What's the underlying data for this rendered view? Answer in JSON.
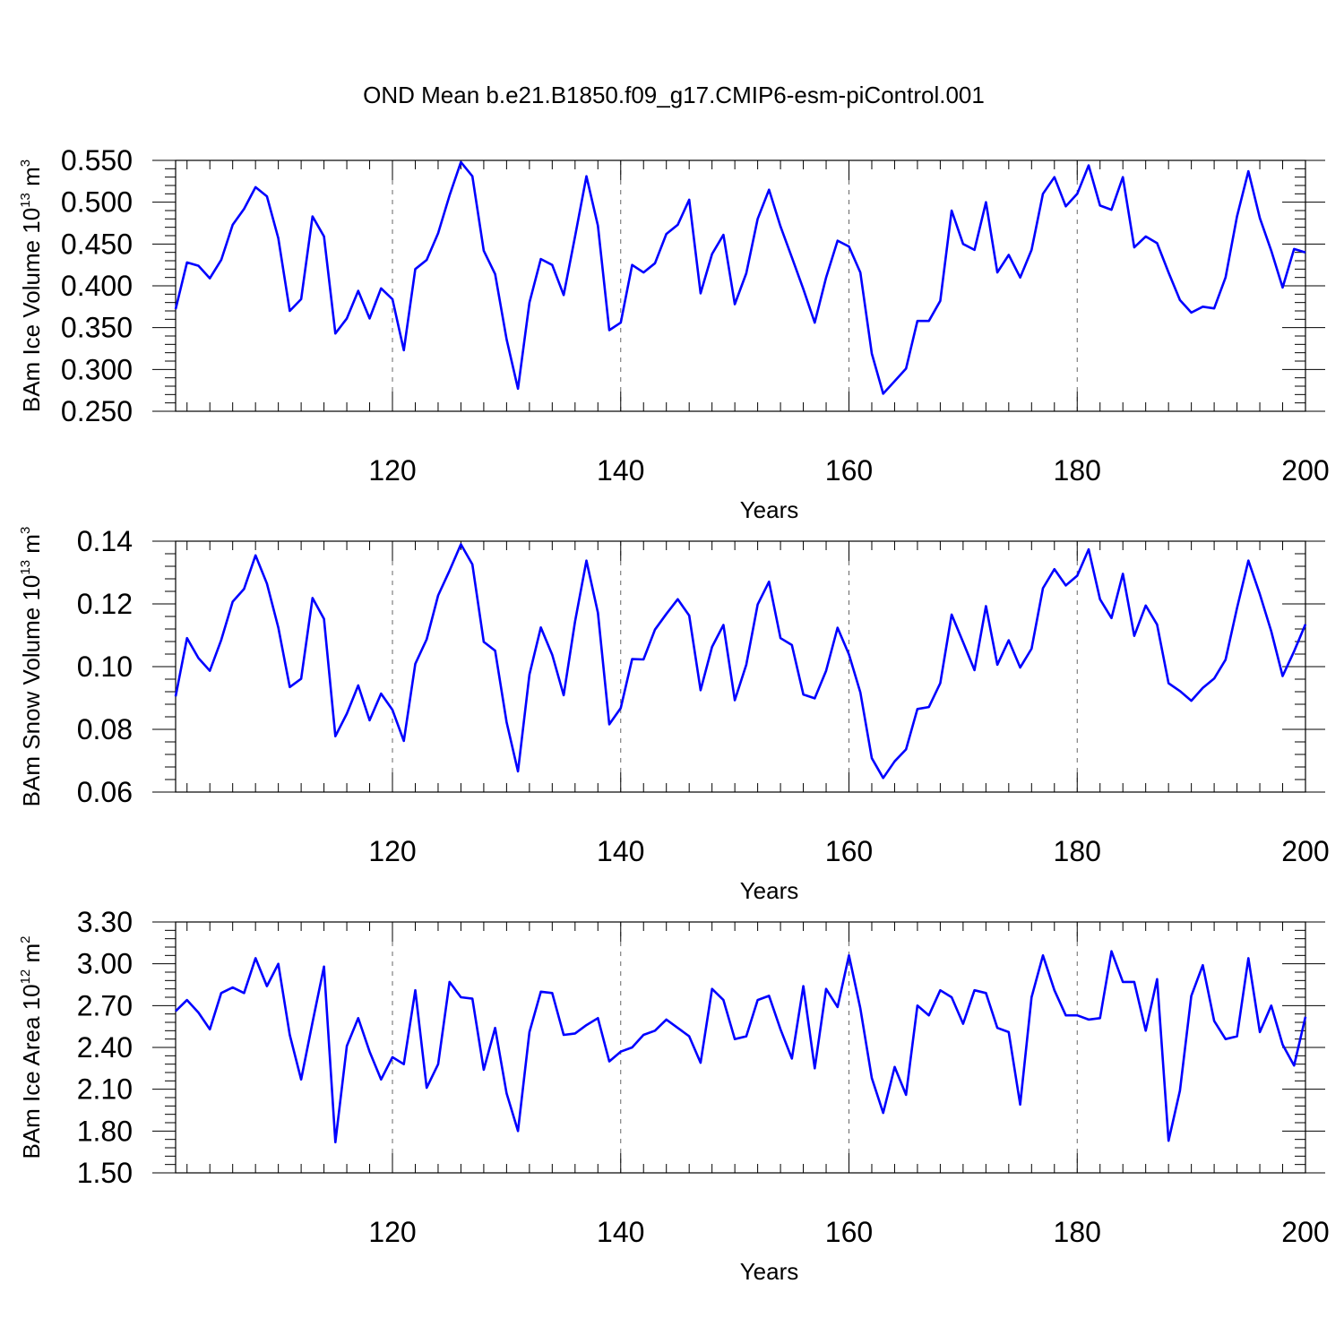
{
  "title": "OND Mean b.e21.B1850.f09_g17.CMIP6-esm-piControl.001",
  "chart_data": [
    {
      "type": "line",
      "xlabel": "Years",
      "ylabel_main": "BAm Ice Volume 10",
      "ylabel_exp": "13",
      "ylabel_unit": " m",
      "ylabel_unit_exp": "3",
      "xlim": [
        101,
        200
      ],
      "ylim": [
        0.25,
        0.55
      ],
      "yticks": [
        0.25,
        0.3,
        0.35,
        0.4,
        0.45,
        0.5,
        0.55
      ],
      "ytick_labels": [
        "0.250",
        "0.300",
        "0.350",
        "0.400",
        "0.450",
        "0.500",
        "0.550"
      ],
      "xticks": [
        120,
        140,
        160,
        180,
        200
      ],
      "xtick_labels": [
        "120",
        "140",
        "160",
        "180",
        "200"
      ],
      "grid_x": [
        120,
        140,
        160,
        180
      ],
      "color": "#0000ff",
      "x_start": 101,
      "values": [
        0.372,
        0.428,
        0.424,
        0.409,
        0.431,
        0.473,
        0.492,
        0.518,
        0.507,
        0.457,
        0.37,
        0.384,
        0.483,
        0.459,
        0.343,
        0.361,
        0.394,
        0.361,
        0.397,
        0.384,
        0.323,
        0.42,
        0.431,
        0.463,
        0.508,
        0.548,
        0.531,
        0.442,
        0.414,
        0.336,
        0.277,
        0.38,
        0.432,
        0.425,
        0.389,
        0.459,
        0.531,
        0.472,
        0.347,
        0.356,
        0.425,
        0.416,
        0.427,
        0.462,
        0.473,
        0.503,
        0.391,
        0.438,
        0.461,
        0.378,
        0.415,
        0.48,
        0.515,
        0.471,
        0.434,
        0.396,
        0.356,
        0.41,
        0.454,
        0.447,
        0.416,
        0.319,
        0.271,
        0.286,
        0.301,
        0.358,
        0.358,
        0.382,
        0.49,
        0.45,
        0.443,
        0.5,
        0.416,
        0.437,
        0.41,
        0.443,
        0.51,
        0.53,
        0.495,
        0.51,
        0.544,
        0.496,
        0.491,
        0.53,
        0.446,
        0.459,
        0.451,
        0.416,
        0.383,
        0.368,
        0.375,
        0.373,
        0.41,
        0.483,
        0.537,
        0.481,
        0.442,
        0.398,
        0.444,
        0.44
      ]
    },
    {
      "type": "line",
      "xlabel": "Years",
      "ylabel_main": "BAm Snow Volume 10",
      "ylabel_exp": "13",
      "ylabel_unit": " m",
      "ylabel_unit_exp": "3",
      "xlim": [
        101,
        200
      ],
      "ylim": [
        0.06,
        0.14
      ],
      "yticks": [
        0.06,
        0.08,
        0.1,
        0.12,
        0.14
      ],
      "ytick_labels": [
        "0.06",
        "0.08",
        "0.10",
        "0.12",
        "0.14"
      ],
      "xticks": [
        120,
        140,
        160,
        180,
        200
      ],
      "xtick_labels": [
        "120",
        "140",
        "160",
        "180",
        "200"
      ],
      "grid_x": [
        120,
        140,
        160,
        180
      ],
      "color": "#0000ff",
      "x_start": 101,
      "values": [
        0.0905,
        0.1091,
        0.1027,
        0.0987,
        0.1085,
        0.1207,
        0.1248,
        0.1355,
        0.1265,
        0.1125,
        0.0935,
        0.0961,
        0.1219,
        0.1152,
        0.0778,
        0.085,
        0.094,
        0.0829,
        0.0914,
        0.0862,
        0.0763,
        0.1009,
        0.1087,
        0.1227,
        0.1306,
        0.139,
        0.1326,
        0.1079,
        0.1051,
        0.0823,
        0.0666,
        0.0975,
        0.1125,
        0.1038,
        0.0909,
        0.1144,
        0.1338,
        0.1172,
        0.0816,
        0.0868,
        0.1024,
        0.1023,
        0.1118,
        0.1168,
        0.1215,
        0.1163,
        0.0925,
        0.1063,
        0.1133,
        0.0893,
        0.1006,
        0.1198,
        0.1271,
        0.1091,
        0.1069,
        0.0911,
        0.0899,
        0.0987,
        0.1124,
        0.1039,
        0.0918,
        0.0708,
        0.0645,
        0.0698,
        0.0736,
        0.0865,
        0.0871,
        0.0947,
        0.1166,
        0.1078,
        0.0989,
        0.1193,
        0.1006,
        0.1084,
        0.0997,
        0.1057,
        0.125,
        0.1311,
        0.1259,
        0.129,
        0.1374,
        0.1215,
        0.1155,
        0.1296,
        0.1098,
        0.1195,
        0.1134,
        0.0947,
        0.0922,
        0.0891,
        0.0932,
        0.0962,
        0.1022,
        0.1187,
        0.1338,
        0.1231,
        0.1113,
        0.097,
        0.1049,
        0.1135
      ]
    },
    {
      "type": "line",
      "xlabel": "Years",
      "ylabel_main": "BAm Ice Area 10",
      "ylabel_exp": "12",
      "ylabel_unit": " m",
      "ylabel_unit_exp": "2",
      "xlim": [
        101,
        200
      ],
      "ylim": [
        1.5,
        3.3
      ],
      "yticks": [
        1.5,
        1.8,
        2.1,
        2.4,
        2.7,
        3.0,
        3.3
      ],
      "ytick_labels": [
        "1.50",
        "1.80",
        "2.10",
        "2.40",
        "2.70",
        "3.00",
        "3.30"
      ],
      "xticks": [
        120,
        140,
        160,
        180,
        200
      ],
      "xtick_labels": [
        "120",
        "140",
        "160",
        "180",
        "200"
      ],
      "grid_x": [
        120,
        140,
        160,
        180
      ],
      "color": "#0000ff",
      "x_start": 101,
      "values": [
        2.66,
        2.74,
        2.65,
        2.53,
        2.79,
        2.83,
        2.79,
        3.04,
        2.84,
        3.0,
        2.49,
        2.17,
        2.58,
        2.98,
        1.72,
        2.41,
        2.61,
        2.37,
        2.17,
        2.33,
        2.28,
        2.81,
        2.11,
        2.28,
        2.87,
        2.76,
        2.75,
        2.24,
        2.54,
        2.07,
        1.8,
        2.51,
        2.8,
        2.79,
        2.49,
        2.5,
        2.56,
        2.61,
        2.3,
        2.37,
        2.4,
        2.49,
        2.52,
        2.6,
        2.54,
        2.48,
        2.29,
        2.82,
        2.74,
        2.46,
        2.48,
        2.74,
        2.77,
        2.53,
        2.32,
        2.84,
        2.25,
        2.82,
        2.69,
        3.06,
        2.68,
        2.18,
        1.93,
        2.26,
        2.06,
        2.7,
        2.63,
        2.81,
        2.76,
        2.57,
        2.81,
        2.79,
        2.54,
        2.51,
        1.99,
        2.76,
        3.06,
        2.81,
        2.63,
        2.63,
        2.6,
        2.61,
        3.09,
        2.87,
        2.87,
        2.52,
        2.89,
        1.73,
        2.09,
        2.77,
        2.99,
        2.59,
        2.46,
        2.48,
        3.04,
        2.51,
        2.7,
        2.42,
        2.27,
        2.62
      ]
    }
  ]
}
